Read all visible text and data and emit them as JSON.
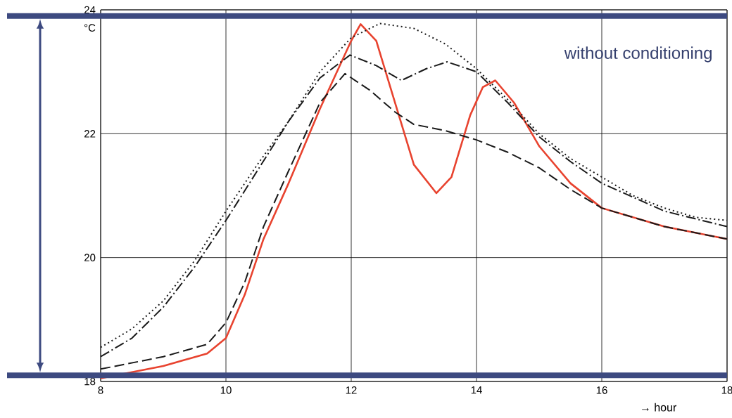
{
  "chart_data": {
    "type": "line",
    "xlabel": "→ hour",
    "ylabel": "°C",
    "annotations": [
      "without conditioning"
    ],
    "xlim": [
      8,
      18
    ],
    "ylim": [
      18,
      24
    ],
    "xticks": [
      8,
      10,
      12,
      14,
      16,
      18
    ],
    "yticks": [
      18,
      20,
      22,
      24
    ],
    "grid": true,
    "marker": "none",
    "ref_lines": [
      {
        "axis": "y",
        "value": 23.9,
        "color": "#3d4a80"
      },
      {
        "axis": "y",
        "value": 18.1,
        "color": "#3d4a80"
      }
    ],
    "series": [
      {
        "color": "#e8432f",
        "line_style": "solid",
        "x": [
          8,
          9,
          9.7,
          10,
          10.3,
          10.6,
          11,
          11.5,
          12,
          12.15,
          12.4,
          12.7,
          13,
          13.36,
          13.6,
          13.9,
          14.1,
          14.3,
          14.6,
          15,
          15.5,
          16,
          17,
          18
        ],
        "values": [
          18.05,
          18.25,
          18.45,
          18.7,
          19.4,
          20.3,
          21.2,
          22.4,
          23.5,
          23.77,
          23.5,
          22.5,
          21.5,
          21.04,
          21.3,
          22.3,
          22.75,
          22.86,
          22.5,
          21.8,
          21.2,
          20.8,
          20.5,
          20.3
        ]
      },
      {
        "color": "#1a1a1a",
        "line_style": "dotted",
        "x": [
          8,
          8.5,
          9,
          9.5,
          10,
          10.5,
          11,
          11.5,
          12,
          12.46,
          13,
          13.5,
          14,
          14.5,
          15,
          15.5,
          16,
          16.5,
          17,
          17.5,
          18
        ],
        "values": [
          18.55,
          18.85,
          19.3,
          19.95,
          20.75,
          21.5,
          22.2,
          23.0,
          23.55,
          23.78,
          23.7,
          23.45,
          23.05,
          22.55,
          22.0,
          21.6,
          21.3,
          21.0,
          20.8,
          20.65,
          20.6
        ]
      },
      {
        "color": "#1a1a1a",
        "line_style": "dashdot",
        "x": [
          8,
          8.5,
          9,
          9.5,
          10,
          10.5,
          11,
          11.5,
          11.98,
          12.4,
          12.8,
          13.2,
          13.53,
          14,
          14.5,
          15,
          15.5,
          16,
          17,
          18
        ],
        "values": [
          18.4,
          18.7,
          19.2,
          19.85,
          20.6,
          21.4,
          22.2,
          22.9,
          23.27,
          23.1,
          22.86,
          23.05,
          23.16,
          23.0,
          22.5,
          21.95,
          21.55,
          21.2,
          20.75,
          20.5
        ]
      },
      {
        "color": "#1a1a1a",
        "line_style": "dashed",
        "x": [
          8,
          9,
          9.7,
          10,
          10.3,
          10.6,
          11,
          11.5,
          11.9,
          12.3,
          12.7,
          13,
          13.5,
          14,
          14.5,
          15,
          15.5,
          16,
          17,
          18
        ],
        "values": [
          18.2,
          18.4,
          18.6,
          18.95,
          19.6,
          20.5,
          21.4,
          22.5,
          22.97,
          22.7,
          22.35,
          22.15,
          22.05,
          21.9,
          21.7,
          21.45,
          21.1,
          20.8,
          20.5,
          20.3
        ]
      }
    ]
  }
}
